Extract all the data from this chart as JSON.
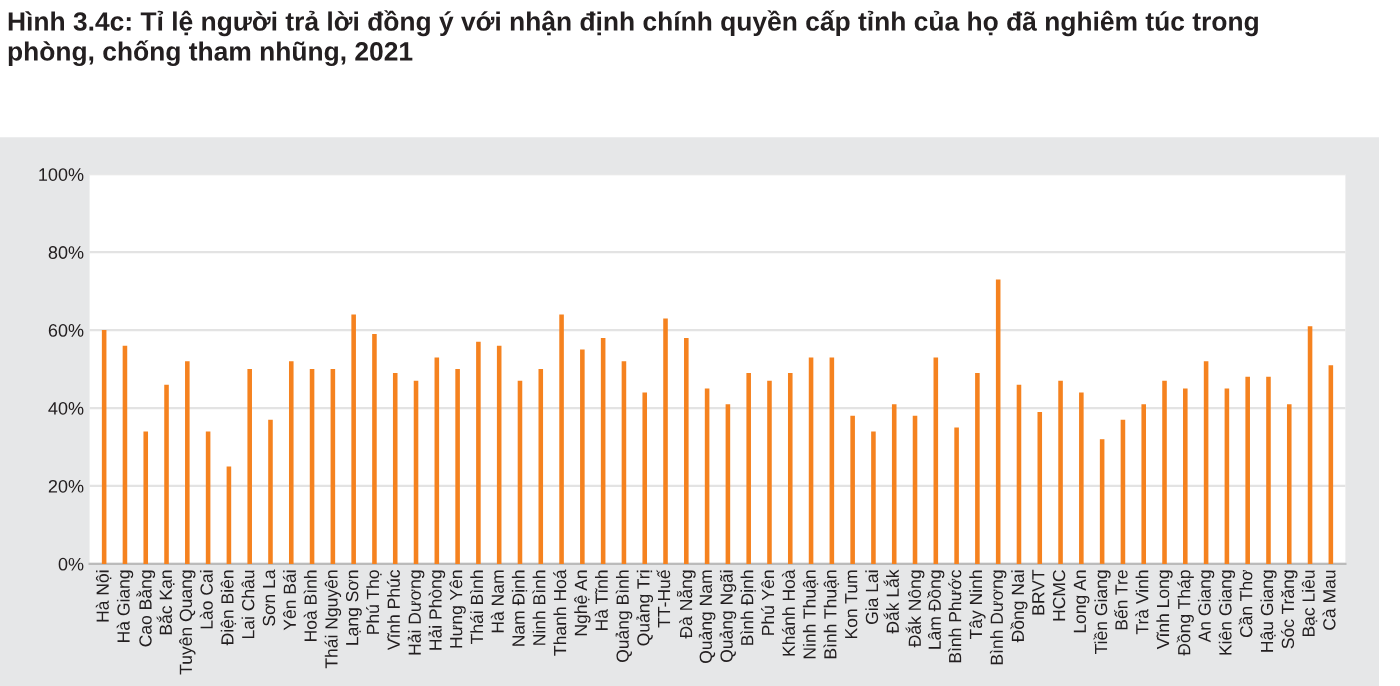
{
  "chart_data": {
    "type": "bar",
    "title": "Hình 3.4c: Tỉ lệ người trả lời đồng ý với nhận định chính quyền cấp tỉnh của họ đã nghiêm túc trong\nphòng, chống tham nhũng, 2021",
    "categories": [
      "Hà Nội",
      "Hà Giang",
      "Cao Bằng",
      "Bắc Kạn",
      "Tuyên Quang",
      "Lào Cai",
      "Điện Biên",
      "Lai Châu",
      "Sơn La",
      "Yên Bái",
      "Hoà Bình",
      "Thái Nguyên",
      "Lạng Sơn",
      "Phú Thọ",
      "Vĩnh Phúc",
      "Hải Dương",
      "Hải Phòng",
      "Hưng Yên",
      "Thái Bình",
      "Hà Nam",
      "Nam Định",
      "Ninh Bình",
      "Thanh Hoá",
      "Nghệ An",
      "Hà Tĩnh",
      "Quảng Bình",
      "Quảng Trị",
      "TT-Huế",
      "Đà Nẵng",
      "Quảng Nam",
      "Quảng Ngãi",
      "Bình Định",
      "Phú Yên",
      "Khánh Hoà",
      "Ninh Thuận",
      "Bình Thuận",
      "Kon Tum",
      "Gia Lai",
      "Đắk Lắk",
      "Đắk Nông",
      "Lâm Đồng",
      "Bình Phước",
      "Tây Ninh",
      "Bình Dương",
      "Đồng Nai",
      "BRVT",
      "HCMC",
      "Long An",
      "Tiền Giang",
      "Bến Tre",
      "Trà Vinh",
      "Vĩnh Long",
      "Đồng Tháp",
      "An Giang",
      "Kiên Giang",
      "Cần Thơ",
      "Hậu Giang",
      "Sóc Trăng",
      "Bạc Liêu",
      "Cà Mau"
    ],
    "values": [
      60,
      56,
      34,
      46,
      52,
      34,
      25,
      50,
      37,
      52,
      50,
      50,
      64,
      59,
      49,
      47,
      53,
      50,
      57,
      56,
      47,
      50,
      64,
      55,
      58,
      52,
      44,
      63,
      58,
      45,
      41,
      49,
      47,
      49,
      53,
      53,
      38,
      34,
      41,
      38,
      53,
      35,
      49,
      73,
      46,
      39,
      47,
      44,
      32,
      37,
      41,
      47,
      45,
      52,
      45,
      48,
      48,
      41,
      61,
      51
    ],
    "color": "#f5821f",
    "ylim": [
      0,
      100
    ],
    "yticks": [
      {
        "value": 0,
        "label": "0%"
      },
      {
        "value": 20,
        "label": "20%"
      },
      {
        "value": 40,
        "label": "40%"
      },
      {
        "value": 60,
        "label": "60%"
      },
      {
        "value": 80,
        "label": "80%"
      },
      {
        "value": 100,
        "label": "100%"
      }
    ],
    "grid": "y",
    "legend": false
  }
}
